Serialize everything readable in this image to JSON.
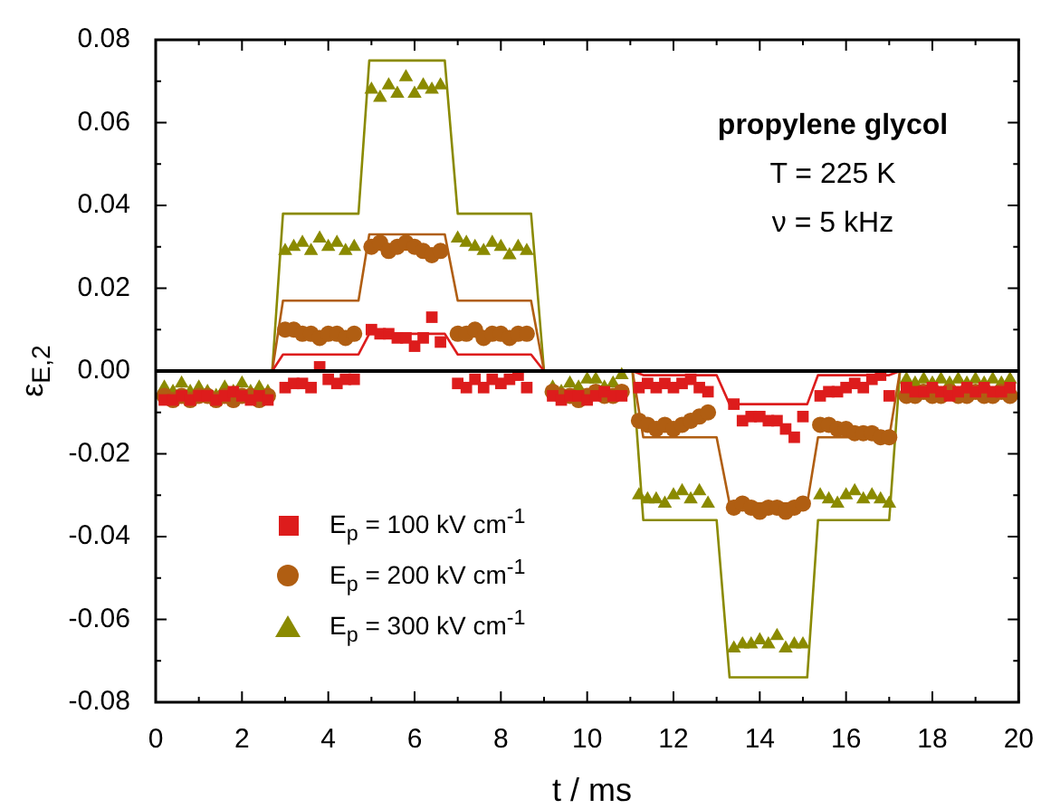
{
  "chart_data": {
    "type": "scatter",
    "xlabel": "t / ms",
    "ylabel": "ε$_{E,2}$",
    "annotations": [
      "propylene glycol",
      "T = 225 K",
      "ν = 5 kHz"
    ],
    "x": [
      0.2,
      0.4,
      0.6,
      0.8,
      1.0,
      1.2,
      1.4,
      1.6,
      1.8,
      2.0,
      2.2,
      2.4,
      2.6,
      3.0,
      3.2,
      3.4,
      3.6,
      3.8,
      4.0,
      4.2,
      4.4,
      4.6,
      5.0,
      5.2,
      5.4,
      5.6,
      5.8,
      6.0,
      6.2,
      6.4,
      6.6,
      7.0,
      7.2,
      7.4,
      7.6,
      7.8,
      8.0,
      8.2,
      8.4,
      8.6,
      9.2,
      9.4,
      9.6,
      9.8,
      10.0,
      10.2,
      10.4,
      10.6,
      10.8,
      11.2,
      11.4,
      11.6,
      11.8,
      12.0,
      12.2,
      12.4,
      12.6,
      12.8,
      13.4,
      13.6,
      13.8,
      14.0,
      14.2,
      14.4,
      14.6,
      14.8,
      15.0,
      15.4,
      15.6,
      15.8,
      16.0,
      16.2,
      16.4,
      16.6,
      16.8,
      17.0,
      17.4,
      17.6,
      17.8,
      18.0,
      18.2,
      18.4,
      18.6,
      18.8,
      19.0,
      19.2,
      19.4,
      19.6,
      19.8
    ],
    "series": [
      {
        "name": "E$_{p}$ = 100 kV cm$^{-1}$",
        "type": "scatter",
        "marker": "square",
        "color": "#dd1c1c",
        "values": [
          -0.007,
          -0.007,
          -0.006,
          -0.007,
          -0.006,
          -0.006,
          -0.007,
          -0.006,
          -0.005,
          -0.006,
          -0.007,
          -0.006,
          -0.007,
          -0.004,
          -0.003,
          -0.003,
          -0.004,
          0.001,
          -0.002,
          -0.003,
          -0.002,
          -0.002,
          0.01,
          0.009,
          0.009,
          0.008,
          0.008,
          0.006,
          0.008,
          0.013,
          0.007,
          -0.003,
          -0.004,
          -0.002,
          -0.004,
          -0.002,
          -0.003,
          -0.002,
          -0.001,
          -0.004,
          -0.006,
          -0.007,
          -0.006,
          -0.006,
          -0.007,
          -0.006,
          -0.005,
          -0.006,
          -0.006,
          -0.004,
          -0.003,
          -0.004,
          -0.003,
          -0.004,
          -0.003,
          -0.002,
          -0.004,
          -0.005,
          -0.008,
          -0.012,
          -0.011,
          -0.011,
          -0.012,
          -0.012,
          -0.014,
          -0.016,
          -0.011,
          -0.006,
          -0.005,
          -0.005,
          -0.004,
          -0.003,
          -0.004,
          -0.002,
          -0.001,
          -0.006,
          -0.004,
          -0.005,
          -0.005,
          -0.004,
          -0.005,
          -0.006,
          -0.005,
          -0.004,
          -0.005,
          -0.004,
          -0.005,
          -0.005,
          -0.004
        ]
      },
      {
        "name": "E$_{p}$ = 200 kV cm$^{-1}$",
        "type": "scatter",
        "marker": "circle",
        "color": "#b05e12",
        "values": [
          -0.006,
          -0.007,
          -0.006,
          -0.007,
          -0.006,
          -0.006,
          -0.007,
          -0.006,
          -0.007,
          -0.006,
          -0.006,
          -0.007,
          -0.006,
          0.01,
          0.01,
          0.009,
          0.009,
          0.008,
          0.009,
          0.009,
          0.008,
          0.009,
          0.03,
          0.031,
          0.029,
          0.03,
          0.031,
          0.03,
          0.029,
          0.028,
          0.029,
          0.009,
          0.009,
          0.01,
          0.008,
          0.009,
          0.009,
          0.008,
          0.009,
          0.009,
          -0.005,
          -0.006,
          -0.006,
          -0.007,
          -0.006,
          -0.005,
          -0.006,
          -0.006,
          -0.005,
          -0.012,
          -0.013,
          -0.014,
          -0.013,
          -0.014,
          -0.013,
          -0.012,
          -0.011,
          -0.01,
          -0.033,
          -0.032,
          -0.033,
          -0.034,
          -0.033,
          -0.033,
          -0.034,
          -0.033,
          -0.032,
          -0.013,
          -0.013,
          -0.014,
          -0.014,
          -0.015,
          -0.015,
          -0.015,
          -0.016,
          -0.016,
          -0.006,
          -0.006,
          -0.005,
          -0.006,
          -0.006,
          -0.005,
          -0.006,
          -0.006,
          -0.005,
          -0.006,
          -0.006,
          -0.005,
          -0.006
        ]
      },
      {
        "name": "E$_{p}$ = 300 kV cm$^{-1}$",
        "type": "scatter",
        "marker": "triangle",
        "color": "#8a8a00",
        "values": [
          -0.004,
          -0.005,
          -0.003,
          -0.005,
          -0.004,
          -0.005,
          -0.006,
          -0.004,
          -0.005,
          -0.003,
          -0.005,
          -0.004,
          -0.005,
          0.029,
          0.03,
          0.031,
          0.029,
          0.032,
          0.03,
          0.031,
          0.029,
          0.03,
          0.068,
          0.066,
          0.069,
          0.067,
          0.071,
          0.067,
          0.069,
          0.068,
          0.069,
          0.032,
          0.031,
          0.03,
          0.029,
          0.031,
          0.03,
          0.028,
          0.03,
          0.029,
          -0.004,
          -0.005,
          -0.003,
          -0.004,
          -0.002,
          -0.002,
          -0.004,
          -0.003,
          -0.001,
          -0.03,
          -0.031,
          -0.031,
          -0.032,
          -0.03,
          -0.029,
          -0.031,
          -0.029,
          -0.032,
          -0.067,
          -0.066,
          -0.066,
          -0.065,
          -0.066,
          -0.064,
          -0.067,
          -0.066,
          -0.066,
          -0.03,
          -0.031,
          -0.032,
          -0.03,
          -0.029,
          -0.031,
          -0.03,
          -0.031,
          -0.032,
          -0.002,
          -0.003,
          -0.002,
          -0.003,
          -0.002,
          -0.003,
          -0.002,
          -0.003,
          -0.002,
          -0.003,
          -0.002,
          -0.003,
          -0.002
        ]
      },
      {
        "type": "line",
        "color": "#dd1c1c",
        "x": [
          0,
          2.7,
          2.95,
          4.7,
          4.95,
          6.7,
          7.0,
          8.7,
          9.0,
          11.05,
          11.3,
          13.0,
          13.3,
          15.1,
          15.35,
          17.0,
          17.25,
          20
        ],
        "values": [
          0,
          0,
          0.004,
          0.004,
          0.009,
          0.009,
          0.004,
          0.004,
          0,
          0,
          -0.001,
          -0.001,
          -0.008,
          -0.008,
          -0.001,
          -0.001,
          0,
          0
        ]
      },
      {
        "type": "line",
        "color": "#b05e12",
        "x": [
          0,
          2.7,
          2.95,
          4.7,
          4.95,
          6.7,
          7.0,
          8.7,
          9.0,
          11.05,
          11.3,
          13.0,
          13.3,
          15.1,
          15.35,
          17.0,
          17.25,
          20
        ],
        "values": [
          0,
          0,
          0.017,
          0.017,
          0.033,
          0.033,
          0.017,
          0.017,
          0,
          0,
          -0.016,
          -0.016,
          -0.032,
          -0.032,
          -0.016,
          -0.016,
          0,
          0
        ]
      },
      {
        "type": "line",
        "color": "#8a8a00",
        "x": [
          0,
          2.7,
          2.95,
          4.7,
          4.95,
          6.7,
          7.0,
          8.7,
          9.0,
          11.05,
          11.3,
          13.0,
          13.3,
          15.1,
          15.35,
          17.0,
          17.25,
          20
        ],
        "values": [
          0,
          0,
          0.038,
          0.038,
          0.075,
          0.075,
          0.038,
          0.038,
          0,
          0,
          -0.036,
          -0.036,
          -0.074,
          -0.074,
          -0.036,
          -0.036,
          0,
          0
        ]
      }
    ],
    "xlim": [
      0,
      20
    ],
    "xticks": [
      0,
      {
        "value": 1,
        "label": null
      },
      2,
      {
        "value": 3,
        "label": null
      },
      4,
      {
        "value": 5,
        "label": null
      },
      6,
      {
        "value": 7,
        "label": null
      },
      8,
      {
        "value": 9,
        "label": null
      },
      10,
      {
        "value": 11,
        "label": null
      },
      12,
      {
        "value": 13,
        "label": null
      },
      14,
      {
        "value": 15,
        "label": null
      },
      16,
      {
        "value": 17,
        "label": null
      },
      18,
      {
        "value": 19,
        "label": null
      },
      20
    ],
    "ylim": [
      -0.08,
      0.08
    ],
    "yticks": [
      -0.08,
      {
        "value": -0.07,
        "label": null
      },
      -0.06,
      {
        "value": -0.05,
        "label": null
      },
      -0.04,
      {
        "value": -0.03,
        "label": null
      },
      -0.02,
      {
        "value": -0.01,
        "label": null
      },
      {
        "value": 0,
        "label": "0.00"
      },
      {
        "value": 0.01,
        "label": null
      },
      0.02,
      {
        "value": 0.03,
        "label": null
      },
      0.04,
      {
        "value": 0.05,
        "label": null
      },
      0.06,
      {
        "value": 0.07,
        "label": null
      },
      0.08
    ],
    "ref_lines": [
      {
        "axis": "y",
        "value": 0,
        "color": "#000000"
      }
    ],
    "legend": "bottom left"
  }
}
